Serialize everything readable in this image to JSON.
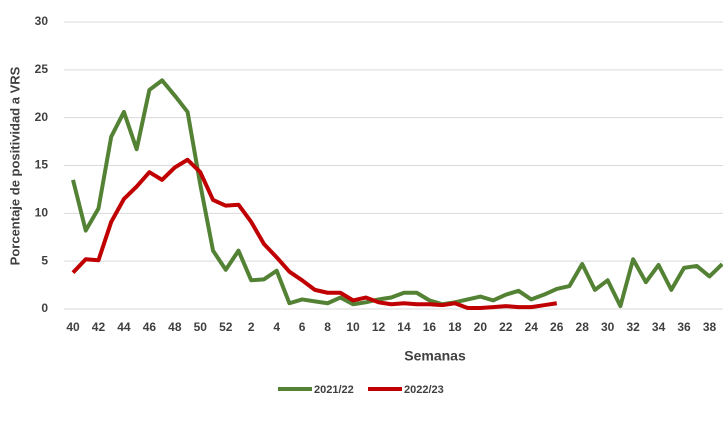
{
  "chart_data": {
    "type": "line",
    "x_label": "Semanas",
    "y_label": "Porcentaje de positividad a VRS",
    "categories": [
      "40",
      null,
      "42",
      null,
      "44",
      null,
      "46",
      null,
      "48",
      null,
      "50",
      null,
      "52",
      null,
      "2",
      null,
      "4",
      null,
      "6",
      null,
      "8",
      null,
      "10",
      null,
      "12",
      null,
      "14",
      null,
      "16",
      null,
      "18",
      null,
      "20",
      null,
      "22",
      null,
      "24",
      null,
      "26",
      null,
      "28",
      null,
      "30",
      null,
      "32",
      null,
      "34",
      null,
      "36",
      null,
      "38",
      null
    ],
    "series": [
      {
        "name": "2021/22",
        "color": "#548235",
        "values": [
          13.5,
          8.2,
          10.5,
          18,
          20.6,
          16.7,
          22.9,
          23.9,
          22.3,
          20.6,
          13,
          6.1,
          4.1,
          6.1,
          3,
          3.1,
          4,
          0.6,
          1,
          0.8,
          0.6,
          1.2,
          0.5,
          0.7,
          1,
          1.2,
          1.7,
          1.7,
          0.9,
          0.5,
          0.7,
          1,
          1.3,
          0.9,
          1.5,
          1.9,
          1,
          1.5,
          2.1,
          2.4,
          4.7,
          2,
          3,
          0.3,
          5.2,
          2.8,
          4.6,
          2,
          4.3,
          4.5,
          3.4,
          4.7
        ]
      },
      {
        "name": "2022/23",
        "color": "#c00000",
        "values": [
          3.8,
          5.2,
          5.1,
          9.1,
          11.5,
          12.8,
          14.3,
          13.5,
          14.8,
          15.6,
          14.3,
          11.4,
          10.8,
          10.9,
          9.1,
          6.8,
          5.4,
          3.9,
          3,
          2,
          1.7,
          1.7,
          0.9,
          1.2,
          0.7,
          0.5,
          0.6,
          0.5,
          0.5,
          0.4,
          0.6,
          0.1,
          0.1,
          0.2,
          0.3,
          0.2,
          0.2,
          0.4,
          0.6,
          null,
          null,
          null,
          null,
          null,
          null,
          null,
          null,
          null,
          null,
          null,
          null,
          null
        ]
      }
    ],
    "ylim": [
      0,
      30
    ],
    "yticks": [
      0,
      5,
      10,
      15,
      20,
      25,
      30
    ],
    "grid": true
  }
}
